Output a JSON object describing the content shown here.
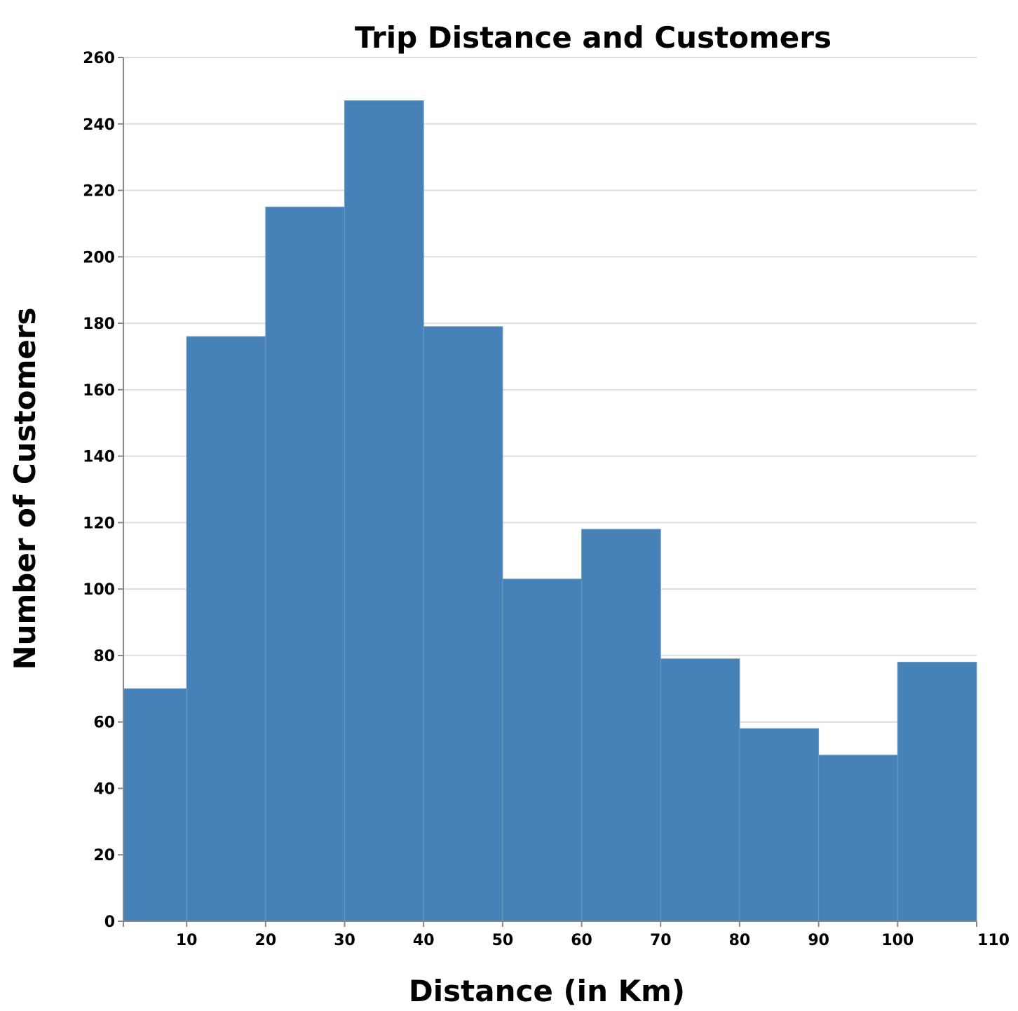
{
  "chart_data": {
    "type": "bar",
    "title": "Trip Distance and Customers",
    "xlabel": "Distance (in Km)",
    "ylabel": "Number of Customers",
    "bins": [
      {
        "x0": 2,
        "x1": 10,
        "value": 70
      },
      {
        "x0": 10,
        "x1": 20,
        "value": 176
      },
      {
        "x0": 20,
        "x1": 30,
        "value": 215
      },
      {
        "x0": 30,
        "x1": 40,
        "value": 247
      },
      {
        "x0": 40,
        "x1": 50,
        "value": 179
      },
      {
        "x0": 50,
        "x1": 60,
        "value": 103
      },
      {
        "x0": 60,
        "x1": 70,
        "value": 118
      },
      {
        "x0": 70,
        "x1": 80,
        "value": 79
      },
      {
        "x0": 80,
        "x1": 90,
        "value": 58
      },
      {
        "x0": 90,
        "x1": 100,
        "value": 50
      },
      {
        "x0": 100,
        "x1": 110,
        "value": 78
      }
    ],
    "xlim": [
      2,
      110
    ],
    "ylim": [
      0,
      260
    ],
    "xticks": [
      10,
      20,
      30,
      40,
      50,
      60,
      70,
      80,
      90,
      100,
      110
    ],
    "yticks": [
      0,
      20,
      40,
      60,
      80,
      100,
      120,
      140,
      160,
      180,
      200,
      220,
      240,
      260
    ],
    "grid": "horizontal",
    "bar_color": "#4682b8"
  }
}
